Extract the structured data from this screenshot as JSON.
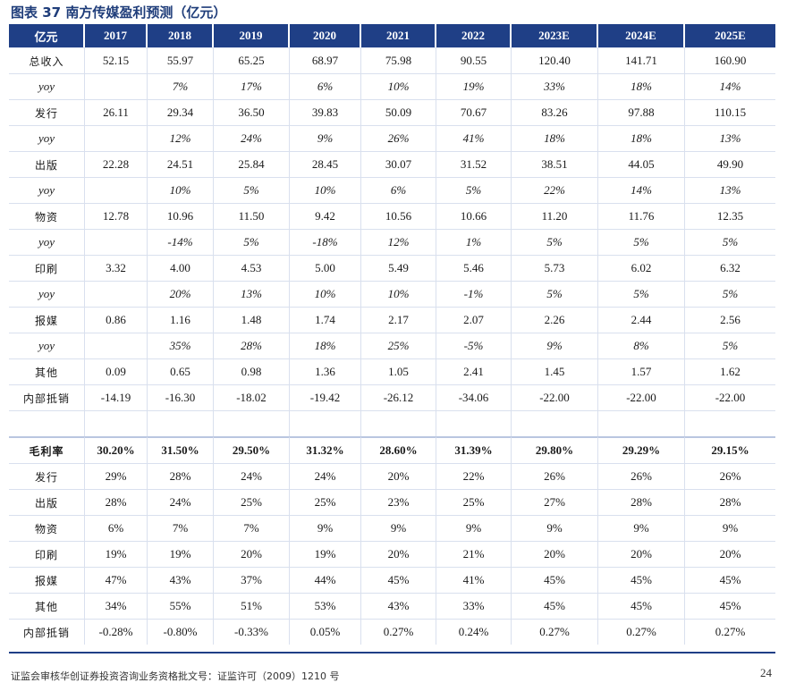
{
  "title": "图表 37 南方传媒盈利预测（亿元）",
  "header": [
    "亿元",
    "2017",
    "2018",
    "2019",
    "2020",
    "2021",
    "2022",
    "2023E",
    "2024E",
    "2025E"
  ],
  "rows_top": [
    {
      "label": "总收入",
      "type": "val",
      "cells": [
        "52.15",
        "55.97",
        "65.25",
        "68.97",
        "75.98",
        "90.55",
        "120.40",
        "141.71",
        "160.90"
      ]
    },
    {
      "label": "yoy",
      "type": "yoy",
      "cells": [
        "",
        "7%",
        "17%",
        "6%",
        "10%",
        "19%",
        "33%",
        "18%",
        "14%"
      ]
    },
    {
      "label": "发行",
      "type": "val",
      "cells": [
        "26.11",
        "29.34",
        "36.50",
        "39.83",
        "50.09",
        "70.67",
        "83.26",
        "97.88",
        "110.15"
      ]
    },
    {
      "label": "yoy",
      "type": "yoy",
      "cells": [
        "",
        "12%",
        "24%",
        "9%",
        "26%",
        "41%",
        "18%",
        "18%",
        "13%"
      ]
    },
    {
      "label": "出版",
      "type": "val",
      "cells": [
        "22.28",
        "24.51",
        "25.84",
        "28.45",
        "30.07",
        "31.52",
        "38.51",
        "44.05",
        "49.90"
      ]
    },
    {
      "label": "yoy",
      "type": "yoy",
      "cells": [
        "",
        "10%",
        "5%",
        "10%",
        "6%",
        "5%",
        "22%",
        "14%",
        "13%"
      ]
    },
    {
      "label": "物资",
      "type": "val",
      "cells": [
        "12.78",
        "10.96",
        "11.50",
        "9.42",
        "10.56",
        "10.66",
        "11.20",
        "11.76",
        "12.35"
      ]
    },
    {
      "label": "yoy",
      "type": "yoy",
      "cells": [
        "",
        "-14%",
        "5%",
        "-18%",
        "12%",
        "1%",
        "5%",
        "5%",
        "5%"
      ]
    },
    {
      "label": "印刷",
      "type": "val",
      "cells": [
        "3.32",
        "4.00",
        "4.53",
        "5.00",
        "5.49",
        "5.46",
        "5.73",
        "6.02",
        "6.32"
      ]
    },
    {
      "label": "yoy",
      "type": "yoy",
      "cells": [
        "",
        "20%",
        "13%",
        "10%",
        "10%",
        "-1%",
        "5%",
        "5%",
        "5%"
      ]
    },
    {
      "label": "报媒",
      "type": "val",
      "cells": [
        "0.86",
        "1.16",
        "1.48",
        "1.74",
        "2.17",
        "2.07",
        "2.26",
        "2.44",
        "2.56"
      ]
    },
    {
      "label": "yoy",
      "type": "yoy",
      "cells": [
        "",
        "35%",
        "28%",
        "18%",
        "25%",
        "-5%",
        "9%",
        "8%",
        "5%"
      ]
    },
    {
      "label": "其他",
      "type": "val",
      "cells": [
        "0.09",
        "0.65",
        "0.98",
        "1.36",
        "1.05",
        "2.41",
        "1.45",
        "1.57",
        "1.62"
      ]
    },
    {
      "label": "内部抵销",
      "type": "val",
      "cells": [
        "-14.19",
        "-16.30",
        "-18.02",
        "-19.42",
        "-26.12",
        "-34.06",
        "-22.00",
        "-22.00",
        "-22.00"
      ]
    }
  ],
  "rows_bottom": [
    {
      "label": "毛利率",
      "type": "bold",
      "cells": [
        "30.20%",
        "31.50%",
        "29.50%",
        "31.32%",
        "28.60%",
        "31.39%",
        "29.80%",
        "29.29%",
        "29.15%"
      ]
    },
    {
      "label": "发行",
      "type": "val",
      "cells": [
        "29%",
        "28%",
        "24%",
        "24%",
        "20%",
        "22%",
        "26%",
        "26%",
        "26%"
      ]
    },
    {
      "label": "出版",
      "type": "val",
      "cells": [
        "28%",
        "24%",
        "25%",
        "25%",
        "23%",
        "25%",
        "27%",
        "28%",
        "28%"
      ]
    },
    {
      "label": "物资",
      "type": "val",
      "cells": [
        "6%",
        "7%",
        "7%",
        "9%",
        "9%",
        "9%",
        "9%",
        "9%",
        "9%"
      ]
    },
    {
      "label": "印刷",
      "type": "val",
      "cells": [
        "19%",
        "19%",
        "20%",
        "19%",
        "20%",
        "21%",
        "20%",
        "20%",
        "20%"
      ]
    },
    {
      "label": "报媒",
      "type": "val",
      "cells": [
        "47%",
        "43%",
        "37%",
        "44%",
        "45%",
        "41%",
        "45%",
        "45%",
        "45%"
      ]
    },
    {
      "label": "其他",
      "type": "val",
      "cells": [
        "34%",
        "55%",
        "51%",
        "53%",
        "43%",
        "33%",
        "45%",
        "45%",
        "45%"
      ]
    },
    {
      "label": "内部抵销",
      "type": "val",
      "cells": [
        "-0.28%",
        "-0.80%",
        "-0.33%",
        "0.05%",
        "0.27%",
        "0.24%",
        "0.27%",
        "0.27%",
        "0.27%"
      ]
    }
  ],
  "footer": "证监会审核华创证券投资咨询业务资格批文号：证监许可（2009）1210 号",
  "page_number": "24"
}
